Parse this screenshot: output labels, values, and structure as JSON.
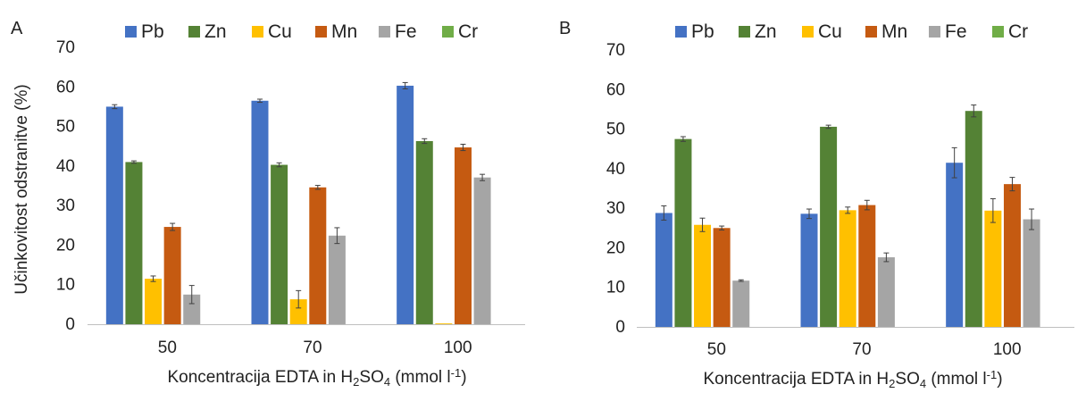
{
  "legend": [
    {
      "name": "Pb",
      "color": "#4472C4"
    },
    {
      "name": "Zn",
      "color": "#548235"
    },
    {
      "name": "Cu",
      "color": "#FFC000"
    },
    {
      "name": "Mn",
      "color": "#C55A11"
    },
    {
      "name": "Fe",
      "color": "#A5A5A5"
    },
    {
      "name": "Cr",
      "color": "#70AD47"
    }
  ],
  "ylabel": "Učinkovitost odstranitve (%)",
  "xlabel": {
    "pre": "Koncentracija EDTA in H",
    "sub1": "2",
    "mid": "SO",
    "sub2": "4",
    "post": " (mmol l",
    "sup": "-1",
    "end": ")"
  },
  "chart_data": [
    {
      "type": "bar",
      "panel": "A",
      "categories": [
        "50",
        "70",
        "100"
      ],
      "ylim": [
        0,
        70
      ],
      "yticks": [
        0,
        10,
        20,
        30,
        40,
        50,
        60,
        70
      ],
      "grid": false,
      "legend_position": "top",
      "series": [
        {
          "name": "Pb",
          "values": [
            55,
            56.5,
            60.3
          ],
          "errors": [
            0.5,
            0.4,
            0.8
          ]
        },
        {
          "name": "Zn",
          "values": [
            41,
            40.3,
            46.3
          ],
          "errors": [
            0.3,
            0.5,
            0.6
          ]
        },
        {
          "name": "Cu",
          "values": [
            11.5,
            6.3,
            0.2
          ],
          "errors": [
            0.7,
            2.2,
            0
          ]
        },
        {
          "name": "Mn",
          "values": [
            24.6,
            34.6,
            44.7
          ],
          "errors": [
            0.9,
            0.5,
            0.8
          ]
        },
        {
          "name": "Fe",
          "values": [
            7.5,
            22.4,
            37.1
          ],
          "errors": [
            2.3,
            2.0,
            0.8
          ]
        },
        {
          "name": "Cr",
          "values": [
            0,
            0,
            0
          ],
          "errors": [
            0,
            0,
            0
          ]
        }
      ]
    },
    {
      "type": "bar",
      "panel": "B",
      "categories": [
        "50",
        "70",
        "100"
      ],
      "ylim": [
        0,
        70
      ],
      "yticks": [
        0,
        10,
        20,
        30,
        40,
        50,
        60,
        70
      ],
      "grid": false,
      "legend_position": "top",
      "series": [
        {
          "name": "Pb",
          "values": [
            28.8,
            28.6,
            41.5
          ],
          "errors": [
            1.8,
            1.2,
            3.8
          ]
        },
        {
          "name": "Zn",
          "values": [
            47.5,
            50.6,
            54.6
          ],
          "errors": [
            0.6,
            0.4,
            1.5
          ]
        },
        {
          "name": "Cu",
          "values": [
            25.8,
            29.5,
            29.4
          ],
          "errors": [
            1.7,
            0.8,
            3.0
          ]
        },
        {
          "name": "Mn",
          "values": [
            25,
            30.8,
            36.1
          ],
          "errors": [
            0.5,
            1.2,
            1.7
          ]
        },
        {
          "name": "Fe",
          "values": [
            11.7,
            17.6,
            27.2
          ],
          "errors": [
            0.2,
            1.1,
            2.6
          ]
        },
        {
          "name": "Cr",
          "values": [
            0,
            0,
            0
          ],
          "errors": [
            0,
            0,
            0
          ]
        }
      ]
    }
  ]
}
